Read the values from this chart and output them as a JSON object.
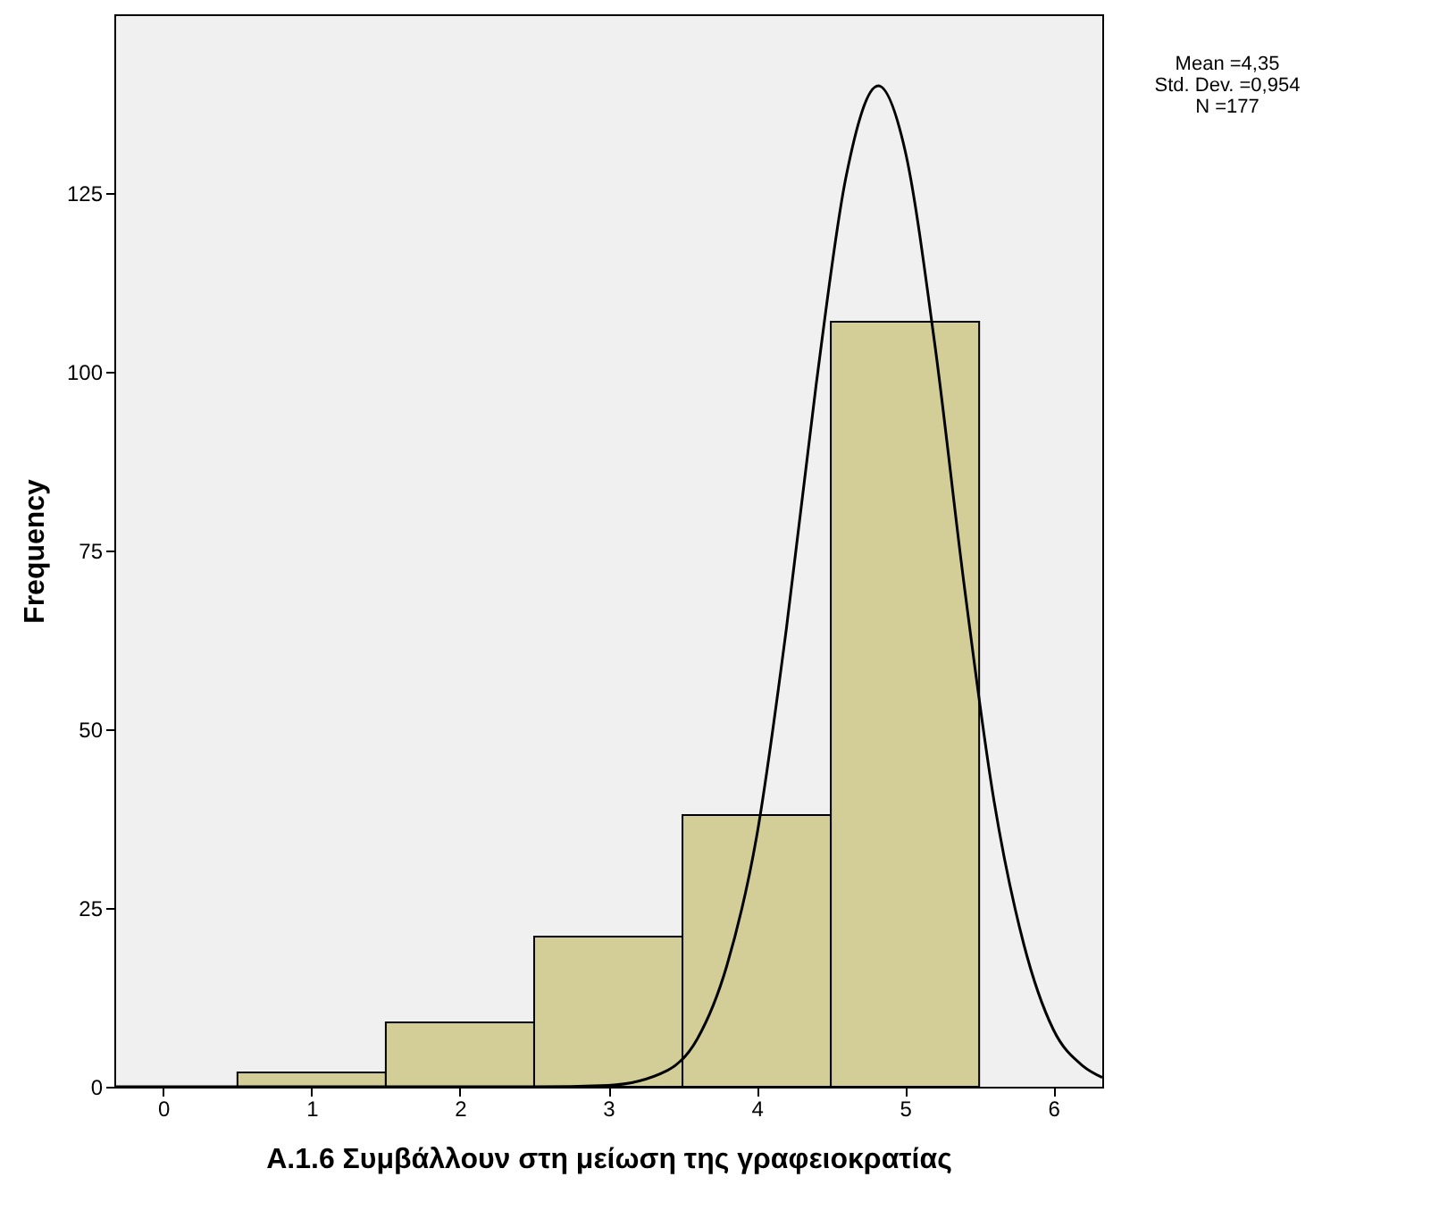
{
  "chart_data": {
    "type": "histogram",
    "xlabel": "A.1.6 Συμβάλλουν στη μείωση της γραφειοκρατίας",
    "ylabel": "Frequency",
    "bins": [
      0.5,
      1.5,
      2.5,
      3.5,
      4.5,
      5.5
    ],
    "values": [
      2,
      9,
      21,
      38,
      107
    ],
    "color": "#d3ce97",
    "series": [
      {
        "type": "line",
        "color": "#000000",
        "x": [
          -0.33,
          2.5,
          3.0,
          3.4,
          3.6,
          3.8,
          4.0,
          4.2,
          4.4,
          4.6,
          4.82,
          5.0,
          5.2,
          5.4,
          5.6,
          5.8,
          6.0,
          6.2,
          6.33
        ],
        "values": [
          0,
          0,
          0.2,
          2.3,
          6.7,
          17,
          35,
          64,
          98,
          127,
          140,
          131,
          104,
          70,
          40,
          20,
          8,
          2.9,
          1.3
        ]
      }
    ],
    "xlim": [
      -0.33,
      6.33
    ],
    "xticks": [
      0,
      1,
      2,
      3,
      4,
      5,
      6
    ],
    "ylim": [
      0,
      150
    ],
    "yticks": [
      0,
      25,
      50,
      75,
      100,
      125
    ],
    "annotations": [
      "Mean =4,35",
      "Std. Dev. =0,954",
      "N =177"
    ],
    "grid": false
  }
}
